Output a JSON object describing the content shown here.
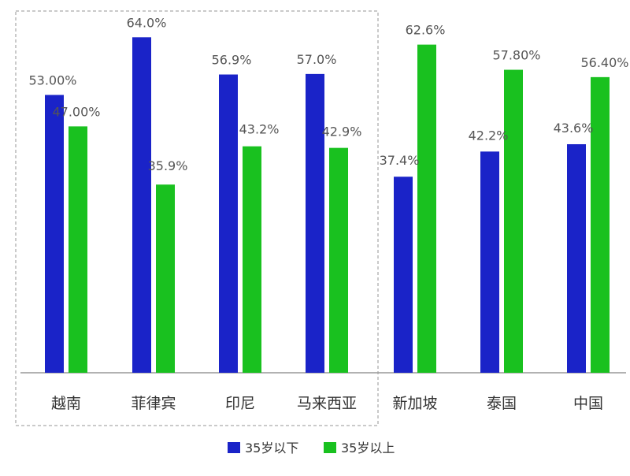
{
  "chart_data": {
    "type": "bar",
    "title": "",
    "xlabel": "",
    "ylabel": "",
    "categories": [
      "越南",
      "菲律宾",
      "印尼",
      "马来西亚",
      "新加坡",
      "泰国",
      "中国"
    ],
    "ylim": [
      0,
      0.66
    ],
    "grid": false,
    "legend_position": "bottom",
    "series": [
      {
        "name": "35岁以下",
        "color": "#1a23c8",
        "values": [
          53.0,
          64.0,
          56.9,
          57.0,
          37.4,
          42.2,
          43.6
        ],
        "labels": [
          "53.00%",
          "64.0%",
          "56.9%",
          "57.0%",
          "37.4%",
          "42.2%",
          "43.6%"
        ]
      },
      {
        "name": "35岁以上",
        "color": "#19c11f",
        "values": [
          47.0,
          35.9,
          43.2,
          42.9,
          62.6,
          57.8,
          56.4
        ],
        "labels": [
          "47.00%",
          "35.9%",
          "43.2%",
          "42.9%",
          "62.6%",
          "57.80%",
          "56.40%"
        ]
      }
    ],
    "highlight_group": [
      "越南",
      "菲律宾",
      "印尼",
      "马来西亚"
    ]
  },
  "colors": {
    "axis": "#999999",
    "label_text": "#555555",
    "category_text": "#333333",
    "highlight_border": "#b9b9b9"
  }
}
